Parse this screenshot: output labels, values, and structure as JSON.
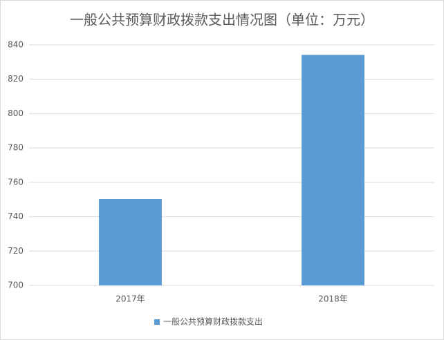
{
  "chart_data": {
    "type": "bar",
    "title": "一般公共预算财政拨款支出情况图（单位：万元）",
    "categories": [
      "2017年",
      "2018年"
    ],
    "series": [
      {
        "name": "一般公共预算财政拨款支出",
        "color": "#5b9bd5",
        "values": [
          750.3,
          834.2
        ]
      }
    ],
    "ylim": [
      700,
      840
    ],
    "yticks": [
      700,
      720,
      740,
      760,
      780,
      800,
      820,
      840
    ],
    "grid": true,
    "legend": "bottom"
  }
}
